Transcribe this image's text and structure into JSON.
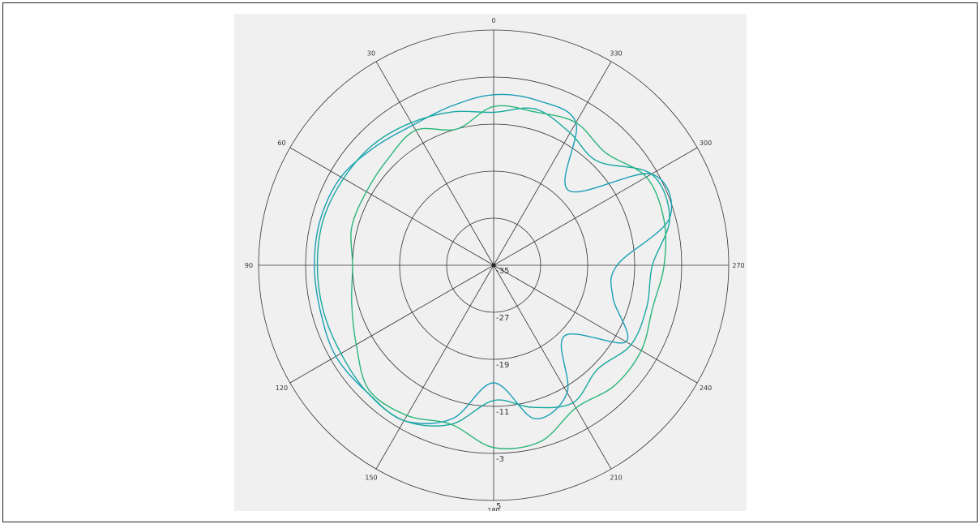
{
  "chart_data": {
    "type": "polar-line",
    "title": "",
    "theta_direction": "counterclockwise",
    "theta_zero": "top",
    "angle_ticks": [
      "0",
      "30",
      "60",
      "90",
      "120",
      "150",
      "180",
      "210",
      "240",
      "270",
      "300",
      "330"
    ],
    "radial_ticks": [
      "-35",
      "-27",
      "-19",
      "-11",
      "-3",
      "5"
    ],
    "radial_range": [
      -35,
      5
    ],
    "grid": true,
    "series": [
      {
        "color": "#1a9fb6",
        "angles": [
          0,
          15,
          30,
          45,
          60,
          75,
          90,
          105,
          120,
          135,
          150,
          165,
          180,
          195,
          210,
          225,
          240,
          255,
          270,
          285,
          300,
          315,
          330,
          345
        ],
        "values": [
          -6,
          -7,
          -7.5,
          -6.5,
          -5,
          -4.5,
          -4.5,
          -4.5,
          -4,
          -4.5,
          -4.5,
          -8,
          -15,
          -8,
          -10,
          -18,
          -9,
          -14,
          -14,
          -4,
          -4,
          -17,
          -7,
          -6
        ]
      },
      {
        "color": "#18a8a0",
        "angles": [
          0,
          15,
          30,
          45,
          60,
          75,
          90,
          105,
          120,
          135,
          150,
          165,
          180,
          195,
          210,
          225,
          240,
          255,
          270,
          285,
          300,
          315,
          330,
          345
        ],
        "values": [
          -9,
          -8,
          -7,
          -6,
          -5.5,
          -5,
          -5,
          -5,
          -5,
          -4.5,
          -4.5,
          -7,
          -12,
          -10,
          -8,
          -10,
          -8,
          -8,
          -8,
          -4,
          -4,
          -10,
          -9,
          -7.5
        ]
      },
      {
        "color": "#2bb57a",
        "angles": [
          0,
          15,
          30,
          45,
          60,
          75,
          90,
          105,
          120,
          135,
          150,
          165,
          180,
          195,
          210,
          225,
          240,
          255,
          270,
          285,
          300,
          315,
          330,
          345
        ],
        "values": [
          -8,
          -11,
          -8.5,
          -9.5,
          -10,
          -10,
          -11,
          -10,
          -8,
          -5,
          -5.5,
          -7,
          -4,
          -4,
          -7,
          -6,
          -6,
          -7,
          -6,
          -5,
          -5,
          -8,
          -7,
          -8
        ]
      }
    ]
  }
}
